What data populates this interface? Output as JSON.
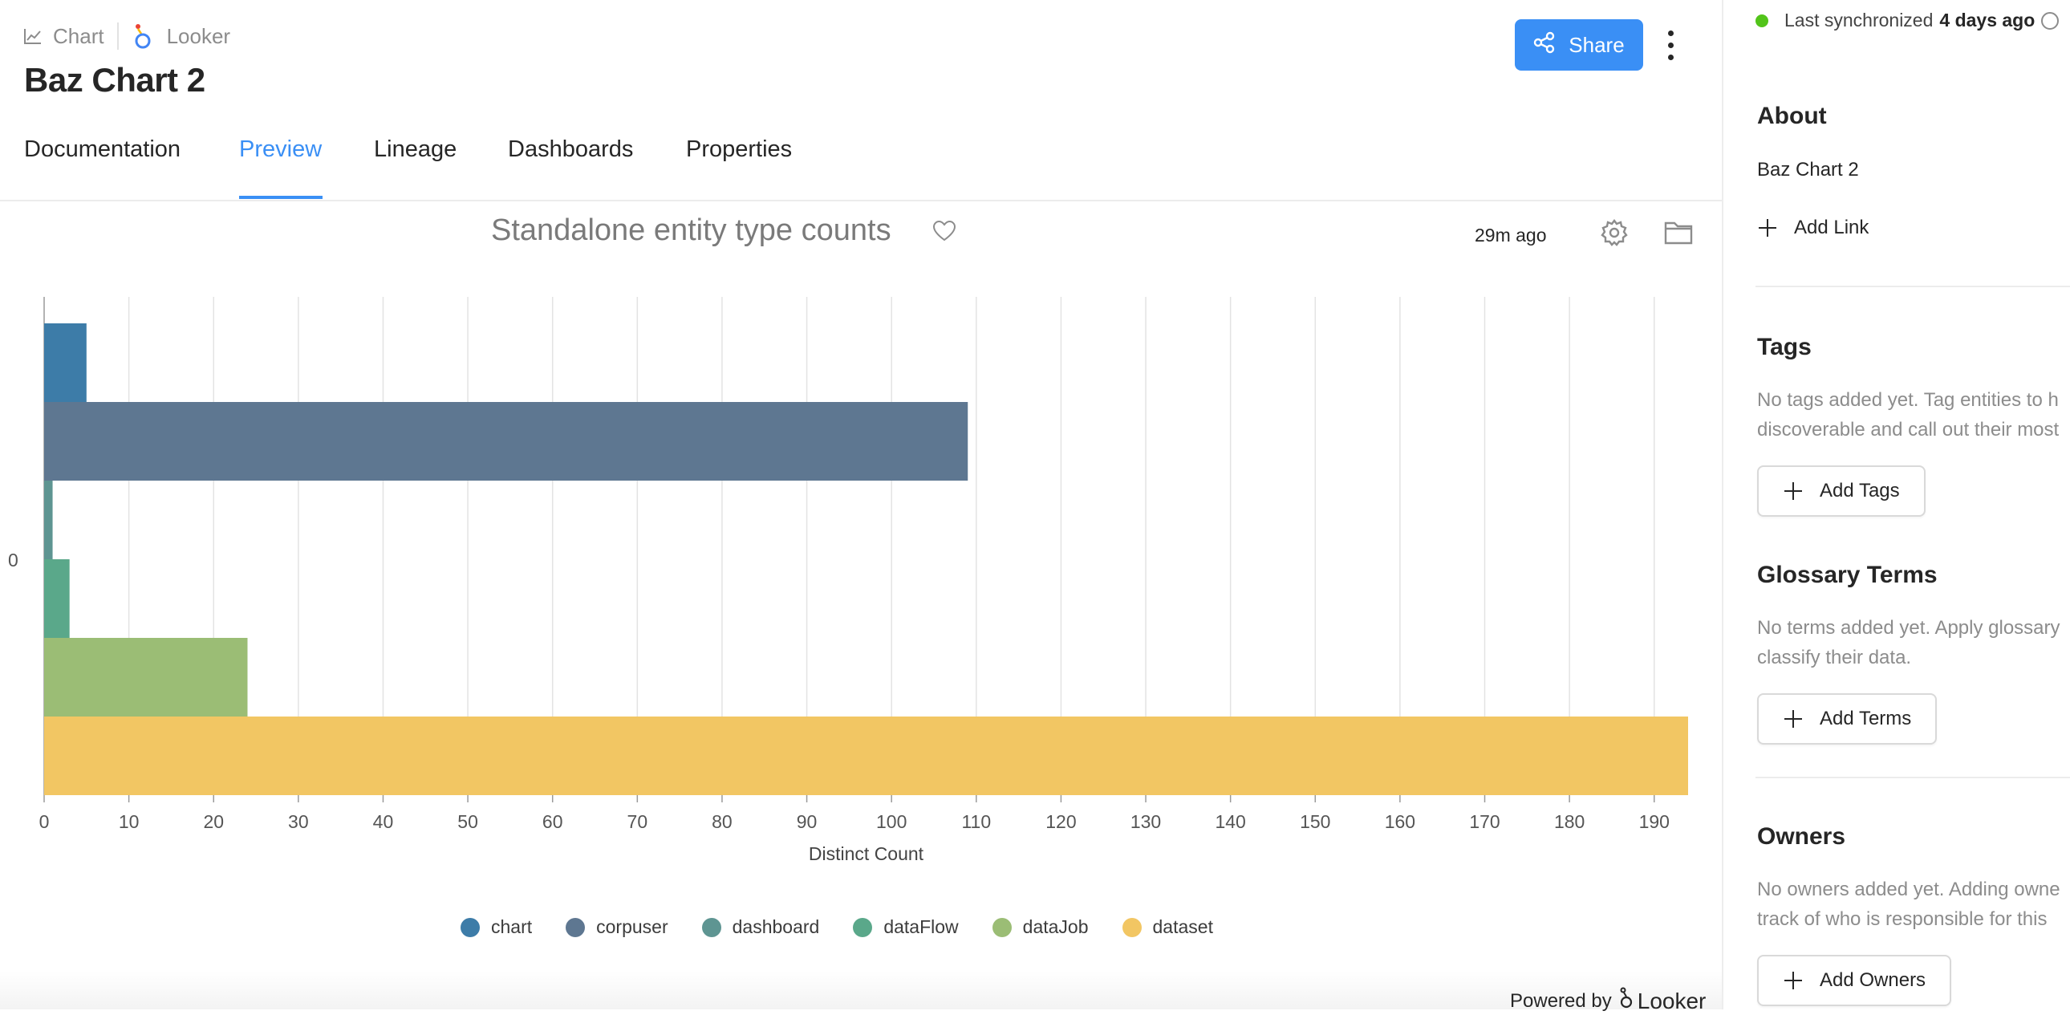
{
  "breadcrumb": {
    "type_label": "Chart",
    "platform_label": "Looker"
  },
  "entity": {
    "title": "Baz Chart 2"
  },
  "actions": {
    "share_label": "Share"
  },
  "tabs": [
    {
      "label": "Documentation"
    },
    {
      "label": "Preview"
    },
    {
      "label": "Lineage"
    },
    {
      "label": "Dashboards"
    },
    {
      "label": "Properties"
    }
  ],
  "active_tab": "Preview",
  "preview": {
    "title": "Standalone entity type counts",
    "updated": "29m ago",
    "powered_by": "Powered by",
    "powered_brand": "Looker"
  },
  "chart_data": {
    "type": "bar",
    "orientation": "horizontal",
    "categories": [
      "0"
    ],
    "series": [
      {
        "name": "chart",
        "values": [
          5
        ],
        "color": "#3d7ca8"
      },
      {
        "name": "corpuser",
        "values": [
          109
        ],
        "color": "#5e7791"
      },
      {
        "name": "dashboard",
        "values": [
          1
        ],
        "color": "#5e9592"
      },
      {
        "name": "dataFlow",
        "values": [
          3
        ],
        "color": "#5aa88a"
      },
      {
        "name": "dataJob",
        "values": [
          24
        ],
        "color": "#9bbd75"
      },
      {
        "name": "dataset",
        "values": [
          194
        ],
        "color": "#f2c663"
      }
    ],
    "xlabel": "Distinct Count",
    "xlim": [
      0,
      194
    ],
    "xticks": [
      0,
      10,
      20,
      30,
      40,
      50,
      60,
      70,
      80,
      90,
      100,
      110,
      120,
      130,
      140,
      150,
      160,
      170,
      180,
      190
    ],
    "grid": true,
    "legend": "bottom"
  },
  "sidebar": {
    "sync_text": "Last synchronized",
    "sync_time": "4 days ago",
    "about": {
      "title": "About",
      "text": "Baz Chart 2",
      "add_link": "Add Link"
    },
    "tags": {
      "title": "Tags",
      "empty_line1": "No tags added yet. Tag entities to h",
      "empty_line2": "discoverable and call out their most",
      "button": "Add Tags"
    },
    "glossary": {
      "title": "Glossary Terms",
      "empty_line1": "No terms added yet. Apply glossary",
      "empty_line2": "classify their data.",
      "button": "Add Terms"
    },
    "owners": {
      "title": "Owners",
      "empty_line1": "No owners added yet. Adding owne",
      "empty_line2": "track of who is responsible for this",
      "button": "Add Owners"
    }
  }
}
